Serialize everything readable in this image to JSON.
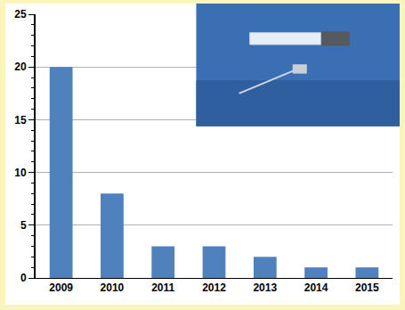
{
  "chart_data": {
    "type": "bar",
    "categories": [
      "2009",
      "2010",
      "2011",
      "2012",
      "2013",
      "2014",
      "2015"
    ],
    "values": [
      20,
      8,
      3,
      3,
      2,
      1,
      1
    ],
    "color": "#4f81bd",
    "ylim": [
      0,
      25
    ],
    "yticks": [
      0,
      5,
      10,
      15,
      20,
      25
    ],
    "grid": true
  }
}
